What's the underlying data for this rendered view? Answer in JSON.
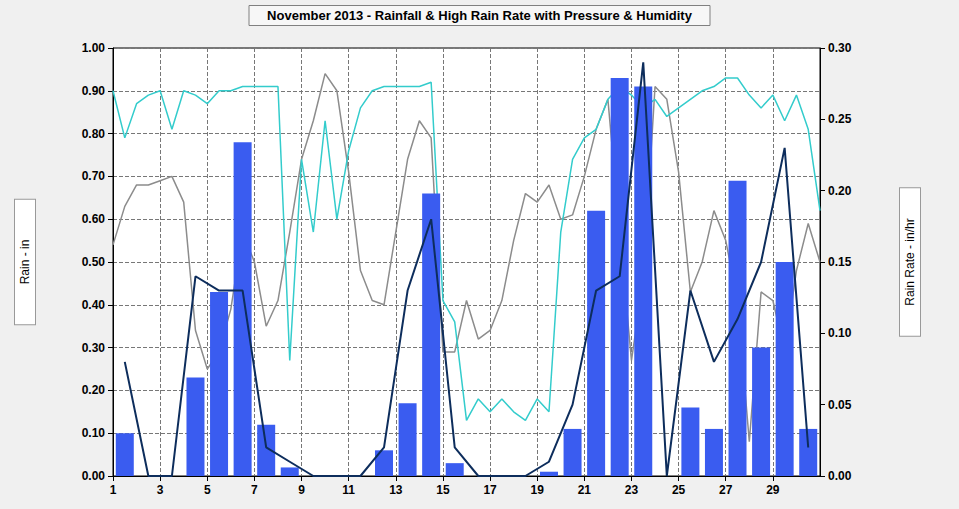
{
  "chart_data": {
    "type": "bar",
    "title": "November 2013 - Rainfall & High Rain Rate with Pressure & Humidity",
    "y_label": "Rain - in",
    "y2_label": "Rain Rate - in/hr",
    "xlim": [
      1,
      31
    ],
    "xticks": [
      1,
      3,
      5,
      7,
      9,
      11,
      13,
      15,
      17,
      19,
      21,
      23,
      25,
      27,
      29
    ],
    "ylim": [
      0,
      1
    ],
    "yticks": [
      {
        "value": 0,
        "label": "0.00"
      },
      {
        "value": 0.1,
        "label": "0.10"
      },
      {
        "value": 0.2,
        "label": "0.20"
      },
      {
        "value": 0.3,
        "label": "0.30"
      },
      {
        "value": 0.4,
        "label": "0.40"
      },
      {
        "value": 0.5,
        "label": "0.50"
      },
      {
        "value": 0.6,
        "label": "0.60"
      },
      {
        "value": 0.7,
        "label": "0.70"
      },
      {
        "value": 0.8,
        "label": "0.80"
      },
      {
        "value": 0.9,
        "label": "0.90"
      },
      {
        "value": 1,
        "label": "1.00"
      }
    ],
    "y2lim": [
      0,
      0.3
    ],
    "y2ticks": [
      {
        "value": 0,
        "label": "0.00"
      },
      {
        "value": 0.05,
        "label": "0.05"
      },
      {
        "value": 0.1,
        "label": "0.10"
      },
      {
        "value": 0.15,
        "label": "0.15"
      },
      {
        "value": 0.2,
        "label": "0.20"
      },
      {
        "value": 0.25,
        "label": "0.25"
      },
      {
        "value": 0.3,
        "label": "0.30"
      }
    ],
    "grid": true,
    "series": [
      {
        "type": "line",
        "color": "#8c8c8c",
        "x": [
          1,
          1.5,
          2,
          2.5,
          3,
          3.5,
          4,
          4.5,
          5,
          5.5,
          6,
          6.5,
          7,
          7.5,
          8,
          8.5,
          9,
          9.5,
          10,
          10.5,
          11,
          11.5,
          12,
          12.5,
          13,
          13.5,
          14,
          14.5,
          15,
          15.5,
          16,
          16.5,
          17,
          17.5,
          18,
          18.5,
          19,
          19.5,
          20,
          20.5,
          21,
          21.5,
          22,
          22.5,
          23,
          23.5,
          24,
          24.5,
          25,
          25.5,
          26,
          26.5,
          27,
          27.5,
          28,
          28.5,
          29,
          29.5,
          30,
          30.5,
          31
        ],
        "values": [
          0.54,
          0.63,
          0.68,
          0.68,
          0.69,
          0.7,
          0.64,
          0.34,
          0.25,
          0.29,
          0.39,
          0.57,
          0.5,
          0.35,
          0.41,
          0.57,
          0.74,
          0.83,
          0.94,
          0.9,
          0.71,
          0.48,
          0.41,
          0.4,
          0.57,
          0.74,
          0.83,
          0.79,
          0.29,
          0.29,
          0.41,
          0.32,
          0.34,
          0.41,
          0.55,
          0.66,
          0.64,
          0.68,
          0.6,
          0.61,
          0.7,
          0.81,
          0.88,
          0.57,
          0.27,
          0.46,
          0.91,
          0.88,
          0.71,
          0.43,
          0.5,
          0.62,
          0.55,
          0.41,
          0.08,
          0.43,
          0.41,
          0.29,
          0.48,
          0.59,
          0.5
        ]
      },
      {
        "type": "line",
        "color": "#33cccc",
        "x": [
          1,
          1.5,
          2,
          2.5,
          3,
          3.5,
          4,
          4.5,
          5,
          5.5,
          6,
          6.5,
          7,
          7.5,
          8,
          8.5,
          9,
          9.5,
          10,
          10.5,
          11,
          11.5,
          12,
          12.5,
          13,
          13.5,
          14,
          14.5,
          15,
          15.5,
          16,
          16.5,
          17,
          17.5,
          18,
          18.5,
          19,
          19.5,
          20,
          20.5,
          21,
          21.5,
          22,
          22.5,
          23,
          23.5,
          24,
          24.5,
          25,
          25.5,
          26,
          26.5,
          27,
          27.5,
          28,
          28.5,
          29,
          29.5,
          30,
          30.5,
          31
        ],
        "values": [
          0.9,
          0.79,
          0.87,
          0.89,
          0.9,
          0.81,
          0.9,
          0.89,
          0.87,
          0.9,
          0.9,
          0.91,
          0.91,
          0.91,
          0.91,
          0.27,
          0.74,
          0.57,
          0.83,
          0.6,
          0.76,
          0.86,
          0.9,
          0.91,
          0.91,
          0.91,
          0.91,
          0.92,
          0.41,
          0.36,
          0.13,
          0.18,
          0.15,
          0.18,
          0.15,
          0.13,
          0.18,
          0.15,
          0.57,
          0.74,
          0.79,
          0.81,
          0.88,
          0.91,
          0.89,
          0.86,
          0.88,
          0.84,
          0.86,
          0.88,
          0.9,
          0.91,
          0.93,
          0.93,
          0.89,
          0.86,
          0.89,
          0.83,
          0.89,
          0.81,
          0.62
        ]
      },
      {
        "type": "bar",
        "color": "#3a5cf0",
        "x": [
          1.5,
          2.5,
          3.5,
          4.5,
          5.5,
          6.5,
          7.5,
          8.5,
          9.5,
          10.5,
          11.5,
          12.5,
          13.5,
          14.5,
          15.5,
          16.5,
          17.5,
          18.5,
          19.5,
          20.5,
          21.5,
          22.5,
          23.5,
          24.5,
          25.5,
          26.5,
          27.5,
          28.5,
          29.5,
          30.5
        ],
        "values": [
          0.1,
          0,
          0,
          0.23,
          0.43,
          0.78,
          0.12,
          0.02,
          0,
          0,
          0,
          0.06,
          0.17,
          0.66,
          0.03,
          0,
          0,
          0,
          0.01,
          0.11,
          0.62,
          0.93,
          0.91,
          0,
          0.16,
          0.11,
          0.69,
          0.3,
          0.5,
          0.11
        ]
      },
      {
        "type": "line",
        "axis": "y2",
        "color": "#0d2d5c",
        "x": [
          1.5,
          2.5,
          3.5,
          4.5,
          5.5,
          6.5,
          7.5,
          8.5,
          9.5,
          10.5,
          11.5,
          12.5,
          13.5,
          14.5,
          15.5,
          16.5,
          17.5,
          18.5,
          19.5,
          20.5,
          21.5,
          22.5,
          23.5,
          24.5,
          25.5,
          26.5,
          27.5,
          28.5,
          29.5,
          30.5
        ],
        "values": [
          0.08,
          0,
          0,
          0.14,
          0.13,
          0.13,
          0.02,
          0.01,
          0,
          0,
          0,
          0.02,
          0.13,
          0.18,
          0.02,
          0,
          0,
          0,
          0.01,
          0.05,
          0.13,
          0.14,
          0.29,
          0,
          0.13,
          0.08,
          0.11,
          0.15,
          0.23,
          0.02
        ]
      }
    ]
  }
}
